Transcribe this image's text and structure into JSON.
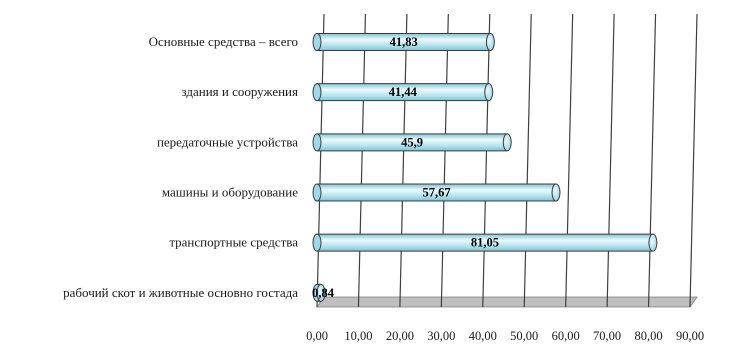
{
  "chart_data": {
    "type": "bar",
    "orientation": "horizontal",
    "style": "3d-cylinder",
    "categories": [
      "Основные средства – всего",
      "здания и сооружения",
      "передаточные устройства",
      "машины и оборудование",
      "транспортные средства",
      "рабочий скот и животные основно гостада"
    ],
    "series": [
      {
        "values": [
          41.83,
          41.44,
          45.9,
          57.67,
          81.05,
          0.84
        ]
      }
    ],
    "data_labels": [
      "41,83",
      "41,44",
      "45,9",
      "57,67",
      "81,05",
      "0,84"
    ],
    "x_ticks": [
      "0,00",
      "10,00",
      "20,00",
      "30,00",
      "40,00",
      "50,00",
      "60,00",
      "70,00",
      "80,00",
      "90,00"
    ],
    "xlim": [
      0,
      90
    ],
    "grid": true,
    "legend": "none",
    "colors": {
      "bar_fill_light": "#eefafd",
      "bar_fill_mid": "#b5e3ee",
      "bar_fill_dark": "#7cc3d6",
      "bar_stroke": "#3b3b3b",
      "grid": "#3f3f3f",
      "floor": "#bfbfbf"
    }
  }
}
